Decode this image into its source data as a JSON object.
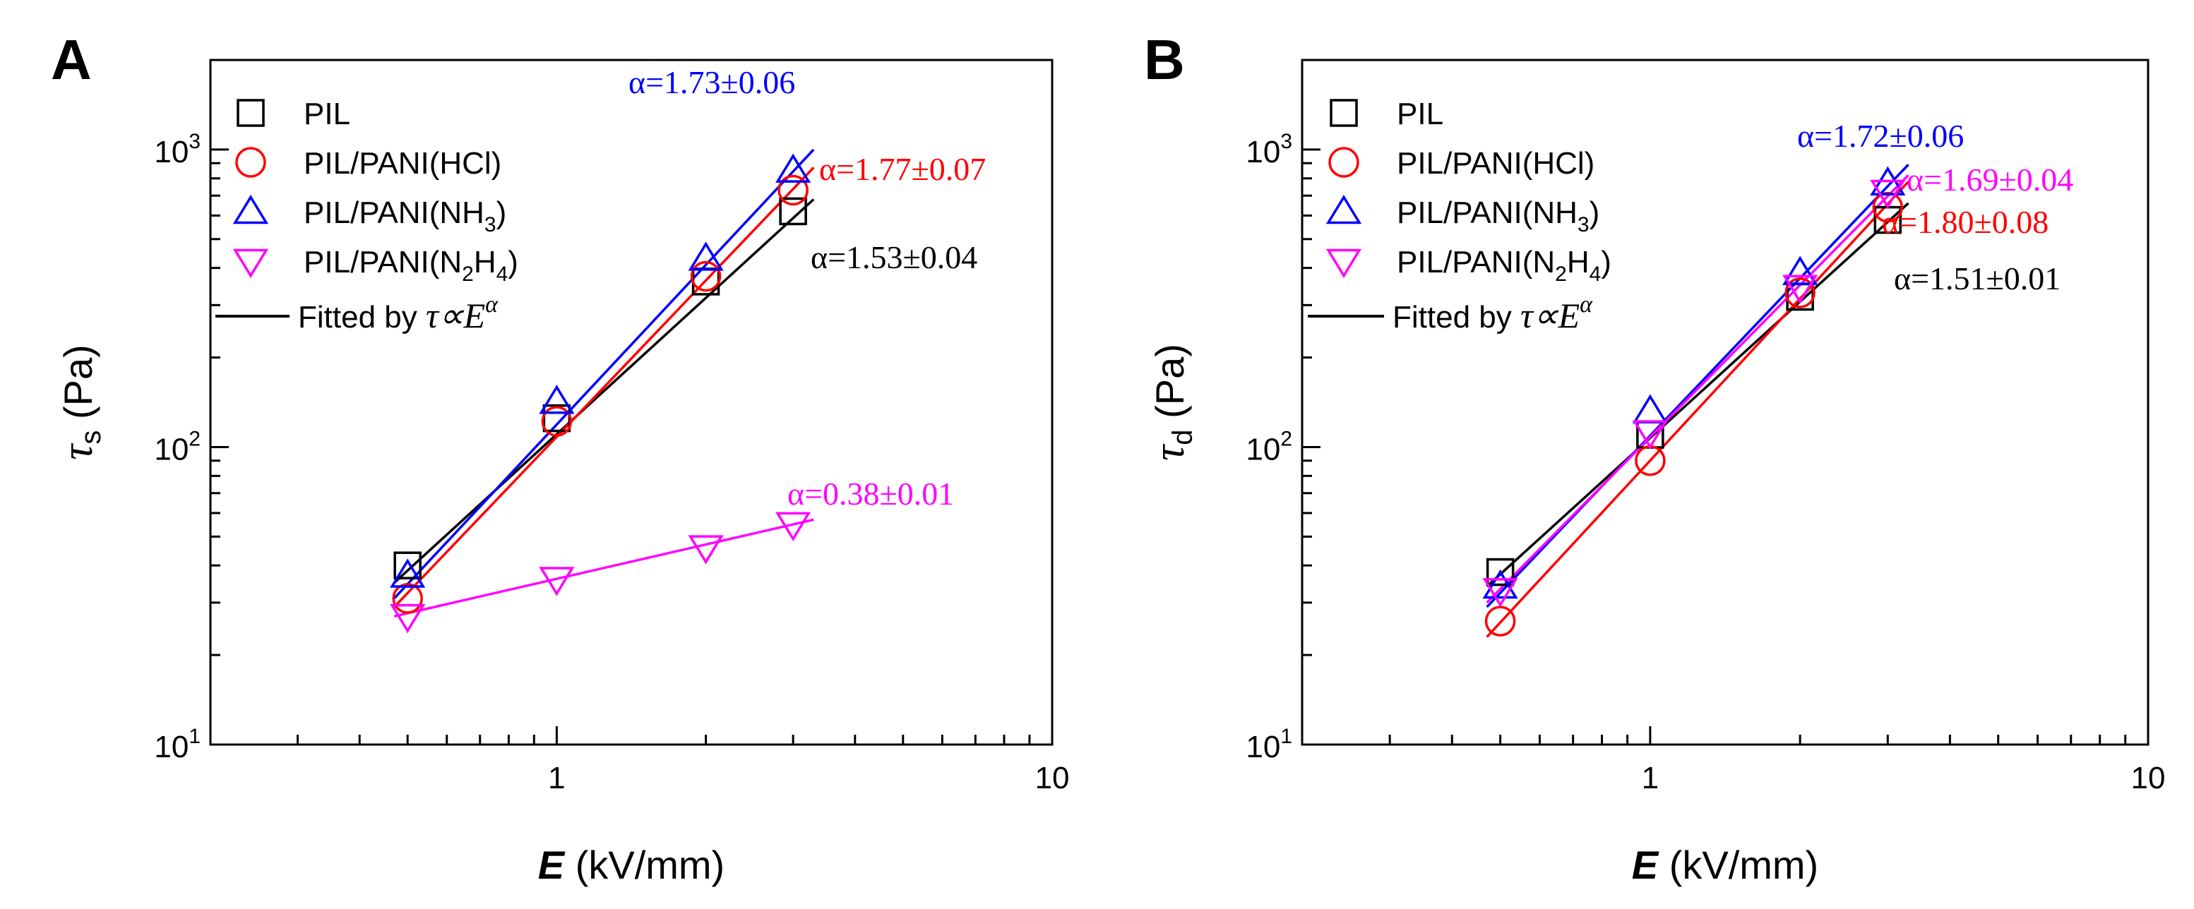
{
  "colors": {
    "PIL": "#000000",
    "PIL/PANI(HCl)": "#ff0000",
    "PIL/PANI(NH3)": "#0000ff",
    "PIL/PANI(N2H4)": "#ff00ff"
  },
  "chart_data": [
    {
      "panel": "A",
      "type": "scatter",
      "xscale": "log",
      "yscale": "log",
      "xlim": [
        0.2,
        10
      ],
      "ylim": [
        10,
        2000
      ],
      "x_ticks": [
        "1",
        "10"
      ],
      "y_ticks": [
        {
          "base": "10",
          "exp": "1"
        },
        {
          "base": "10",
          "exp": "2"
        },
        {
          "base": "10",
          "exp": "3"
        }
      ],
      "xlabel": {
        "sym": "E",
        "unit": " (kV/mm)"
      },
      "ylabel": {
        "sym": "τ",
        "sub": "s",
        "unit": " (Pa)"
      },
      "legend_position": "top-left",
      "legend": [
        {
          "marker": "square",
          "color_key": "PIL",
          "label": "PIL"
        },
        {
          "marker": "circle",
          "color_key": "PIL/PANI(HCl)",
          "label": "PIL/PANI(HCl)"
        },
        {
          "marker": "triangle-up",
          "color_key": "PIL/PANI(NH3)",
          "label_pre": "PIL/PANI(NH",
          "label_sub": "3",
          "label_post": ")"
        },
        {
          "marker": "triangle-down",
          "color_key": "PIL/PANI(N2H4)",
          "label_pre": "PIL/PANI(N",
          "label_sub": "2",
          "label_mid": "H",
          "label_sub2": "4",
          "label_post": ")"
        },
        {
          "marker": "line",
          "color_key": "PIL",
          "label": "Fitted by ",
          "formula_lhs": "τ∝",
          "formula_base": "E",
          "formula_exp": "α"
        }
      ],
      "series": [
        {
          "name": "PIL",
          "color_key": "PIL",
          "marker": "square",
          "x": [
            0.5,
            1,
            2,
            3
          ],
          "y": [
            40,
            125,
            360,
            620
          ],
          "fit": {
            "x": [
              0.47,
              3.3
            ],
            "y": [
              35,
              680
            ]
          },
          "annotation": "α=1.53±0.04"
        },
        {
          "name": "PIL/PANI(HCl)",
          "color_key": "PIL/PANI(HCl)",
          "marker": "circle",
          "x": [
            0.5,
            1,
            2,
            3
          ],
          "y": [
            31,
            122,
            375,
            730
          ],
          "fit": {
            "x": [
              0.47,
              3.3
            ],
            "y": [
              29,
              870
            ]
          },
          "annotation": "α=1.77±0.07"
        },
        {
          "name": "PIL/PANI(NH3)",
          "color_key": "PIL/PANI(NH3)",
          "marker": "triangle-up",
          "x": [
            0.5,
            1,
            2,
            3
          ],
          "y": [
            37,
            142,
            430,
            850
          ],
          "fit": {
            "x": [
              0.47,
              3.3
            ],
            "y": [
              31,
              1000
            ]
          },
          "annotation": "α=1.73±0.06"
        },
        {
          "name": "PIL/PANI(N2H4)",
          "color_key": "PIL/PANI(N2H4)",
          "marker": "triangle-down",
          "x": [
            0.5,
            1,
            2,
            3
          ],
          "y": [
            27,
            36,
            46,
            55
          ],
          "fit": {
            "x": [
              0.47,
              3.3
            ],
            "y": [
              27,
              57
            ]
          },
          "annotation": "α=0.38±0.01"
        }
      ]
    },
    {
      "panel": "B",
      "type": "scatter",
      "xscale": "log",
      "yscale": "log",
      "xlim": [
        0.2,
        10
      ],
      "ylim": [
        10,
        2000
      ],
      "x_ticks": [
        "1",
        "10"
      ],
      "y_ticks": [
        {
          "base": "10",
          "exp": "1"
        },
        {
          "base": "10",
          "exp": "2"
        },
        {
          "base": "10",
          "exp": "3"
        }
      ],
      "xlabel": {
        "sym": "E",
        "unit": " (kV/mm)"
      },
      "ylabel": {
        "sym": "τ",
        "sub": "d",
        "unit": " (Pa)"
      },
      "legend_position": "top-left",
      "legend": [
        {
          "marker": "square",
          "color_key": "PIL",
          "label": "PIL"
        },
        {
          "marker": "circle",
          "color_key": "PIL/PANI(HCl)",
          "label": "PIL/PANI(HCl)"
        },
        {
          "marker": "triangle-up",
          "color_key": "PIL/PANI(NH3)",
          "label_pre": "PIL/PANI(NH",
          "label_sub": "3",
          "label_post": ")"
        },
        {
          "marker": "triangle-down",
          "color_key": "PIL/PANI(N2H4)",
          "label_pre": "PIL/PANI(N",
          "label_sub": "2",
          "label_mid": "H",
          "label_sub2": "4",
          "label_post": ")"
        },
        {
          "marker": "line",
          "color_key": "PIL",
          "label": "Fitted by ",
          "formula_lhs": "τ∝",
          "formula_base": "E",
          "formula_exp": "α"
        }
      ],
      "series": [
        {
          "name": "PIL",
          "color_key": "PIL",
          "marker": "square",
          "x": [
            0.5,
            1,
            2,
            3
          ],
          "y": [
            38,
            110,
            320,
            580
          ],
          "fit": {
            "x": [
              0.47,
              3.3
            ],
            "y": [
              34,
              660
            ]
          },
          "annotation": "α=1.51±0.01"
        },
        {
          "name": "PIL/PANI(HCl)",
          "color_key": "PIL/PANI(HCl)",
          "marker": "circle",
          "x": [
            0.5,
            1,
            2,
            3
          ],
          "y": [
            26,
            90,
            330,
            640
          ],
          "fit": {
            "x": [
              0.47,
              3.3
            ],
            "y": [
              23,
              780
            ]
          },
          "annotation": "α=1.80±0.08"
        },
        {
          "name": "PIL/PANI(NH3)",
          "color_key": "PIL/PANI(NH3)",
          "marker": "triangle-up",
          "x": [
            0.5,
            1,
            2,
            3
          ],
          "y": [
            34,
            132,
            385,
            770
          ],
          "fit": {
            "x": [
              0.47,
              3.3
            ],
            "y": [
              29,
              890
            ]
          },
          "annotation": "α=1.72±0.06"
        },
        {
          "name": "PIL/PANI(N2H4)",
          "color_key": "PIL/PANI(N2H4)",
          "marker": "triangle-down",
          "x": [
            0.5,
            1,
            2,
            3
          ],
          "y": [
            33,
            112,
            345,
            720
          ],
          "fit": {
            "x": [
              0.47,
              3.3
            ],
            "y": [
              30,
              820
            ]
          },
          "annotation": "α=1.69±0.04"
        }
      ]
    }
  ]
}
